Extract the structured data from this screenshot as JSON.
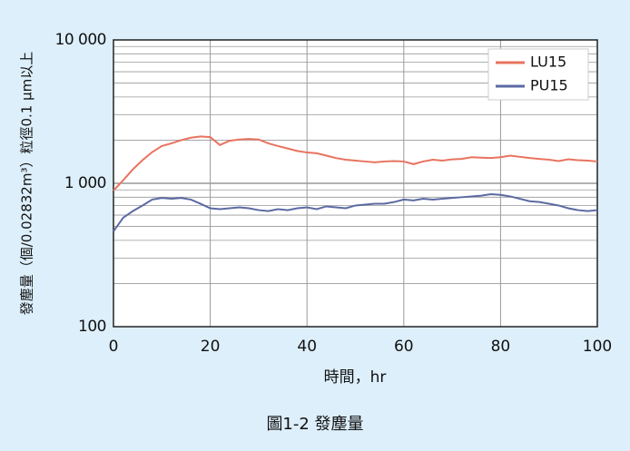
{
  "chart_data": {
    "type": "line",
    "y_label": "發塵量（個/0.02832m³）粒徑0.1 μm以上",
    "x_label": "時間，hr",
    "caption": "圖1-2 發塵量",
    "x": [
      0,
      2,
      4,
      6,
      8,
      10,
      12,
      14,
      16,
      18,
      20,
      22,
      24,
      26,
      28,
      30,
      32,
      34,
      36,
      38,
      40,
      42,
      44,
      46,
      48,
      50,
      52,
      54,
      56,
      58,
      60,
      62,
      64,
      66,
      68,
      70,
      72,
      74,
      76,
      78,
      80,
      82,
      84,
      86,
      88,
      90,
      92,
      94,
      96,
      98,
      100
    ],
    "series": [
      {
        "name": "LU15",
        "color": "#e8735f",
        "values": [
          890,
          1050,
          1250,
          1450,
          1650,
          1820,
          1900,
          2000,
          2080,
          2120,
          2100,
          1850,
          1980,
          2020,
          2040,
          2020,
          1900,
          1820,
          1750,
          1680,
          1640,
          1620,
          1560,
          1500,
          1460,
          1440,
          1420,
          1400,
          1420,
          1430,
          1420,
          1360,
          1420,
          1460,
          1440,
          1470,
          1480,
          1520,
          1510,
          1500,
          1520,
          1560,
          1530,
          1500,
          1480,
          1460,
          1430,
          1470,
          1450,
          1440,
          1420
        ]
      },
      {
        "name": "PU15",
        "color": "#5b6aa3",
        "values": [
          462,
          575,
          640,
          700,
          770,
          790,
          780,
          790,
          770,
          720,
          670,
          660,
          670,
          680,
          670,
          650,
          640,
          660,
          650,
          670,
          680,
          660,
          690,
          680,
          670,
          700,
          710,
          720,
          720,
          740,
          770,
          760,
          780,
          770,
          780,
          790,
          800,
          810,
          820,
          840,
          830,
          810,
          780,
          750,
          740,
          720,
          700,
          670,
          650,
          640,
          650
        ]
      }
    ],
    "xlim": [
      0,
      100
    ],
    "xticks": [
      0,
      20,
      40,
      60,
      80,
      100
    ],
    "ylim": [
      100,
      10000
    ],
    "log_y": true,
    "yticks": [
      100,
      {
        "value": 1000,
        "label": "1 000"
      },
      {
        "value": 10000,
        "label": "10 000"
      }
    ],
    "minor_yticks": [
      200,
      300,
      400,
      500,
      600,
      700,
      800,
      900,
      2000,
      3000,
      4000,
      5000,
      6000,
      7000,
      8000,
      9000
    ],
    "grid": true,
    "legend": "top right"
  }
}
